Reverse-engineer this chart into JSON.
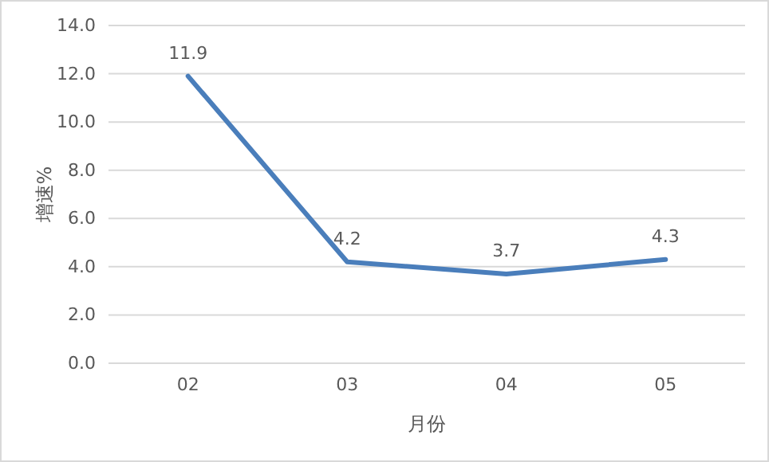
{
  "chart_data": {
    "type": "line",
    "xlabel": "月份",
    "ylabel": "增速%",
    "categories": [
      "02",
      "03",
      "04",
      "05"
    ],
    "series": [
      {
        "color": "#4a7ebb",
        "values": [
          11.9,
          4.2,
          3.7,
          4.3
        ]
      }
    ],
    "ylim": [
      0,
      14
    ],
    "yticks": [
      {
        "value": 0,
        "label": "0.0"
      },
      {
        "value": 2,
        "label": "2.0"
      },
      {
        "value": 4,
        "label": "4.0"
      },
      {
        "value": 6,
        "label": "6.0"
      },
      {
        "value": 8,
        "label": "8.0"
      },
      {
        "value": 10,
        "label": "10.0"
      },
      {
        "value": 12,
        "label": "12.0"
      },
      {
        "value": 14,
        "label": "14.0"
      }
    ],
    "grid": "y",
    "data_labels": true,
    "marker": "none",
    "line_style": "solid"
  }
}
